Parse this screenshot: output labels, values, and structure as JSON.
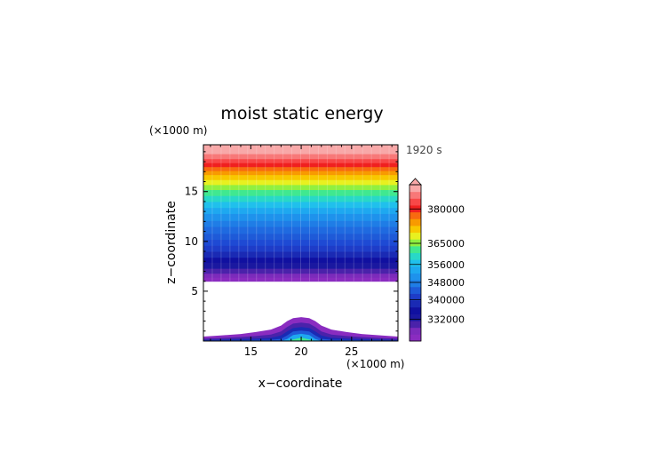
{
  "chart_data": {
    "type": "heatmap",
    "title": "moist static energy",
    "x_unit": "(×1000 m)",
    "z_unit": "(×1000 m)",
    "xlabel": "x−coordinate",
    "ylabel": "z−coordinate",
    "time_label": "1920 s",
    "xlim": [
      10.3,
      29.6
    ],
    "ylim": [
      0,
      19.7
    ],
    "x_ticks": [
      15,
      20,
      25
    ],
    "z_ticks": [
      5,
      10,
      15
    ],
    "bands": [
      {
        "z0": 6.0,
        "z1": 6.4,
        "color": "#8a2cc0"
      },
      {
        "z0": 6.4,
        "z1": 6.8,
        "color": "#7c2bbb"
      },
      {
        "z0": 6.8,
        "z1": 7.3,
        "color": "#4a22aa"
      },
      {
        "z0": 7.3,
        "z1": 7.9,
        "color": "#1a18a0"
      },
      {
        "z0": 7.9,
        "z1": 8.4,
        "color": "#1010a0"
      },
      {
        "z0": 8.4,
        "z1": 9.0,
        "color": "#1a2ab4"
      },
      {
        "z0": 9.0,
        "z1": 9.6,
        "color": "#1e3cc8"
      },
      {
        "z0": 9.6,
        "z1": 10.2,
        "color": "#1e4ad4"
      },
      {
        "z0": 10.2,
        "z1": 10.8,
        "color": "#1e5ad8"
      },
      {
        "z0": 10.8,
        "z1": 11.5,
        "color": "#1f6ae0"
      },
      {
        "z0": 11.5,
        "z1": 12.1,
        "color": "#1f7de6"
      },
      {
        "z0": 12.1,
        "z1": 12.8,
        "color": "#1e92ec"
      },
      {
        "z0": 12.8,
        "z1": 13.4,
        "color": "#1ea8f0"
      },
      {
        "z0": 13.4,
        "z1": 14.0,
        "color": "#20c0ec"
      },
      {
        "z0": 14.0,
        "z1": 14.6,
        "color": "#28d8c8"
      },
      {
        "z0": 14.6,
        "z1": 15.2,
        "color": "#40e890"
      },
      {
        "z0": 15.2,
        "z1": 15.7,
        "color": "#90f040"
      },
      {
        "z0": 15.7,
        "z1": 16.2,
        "color": "#e8f020"
      },
      {
        "z0": 16.2,
        "z1": 16.7,
        "color": "#f8c800"
      },
      {
        "z0": 16.7,
        "z1": 17.1,
        "color": "#f89a00"
      },
      {
        "z0": 17.1,
        "z1": 17.5,
        "color": "#f86a10"
      },
      {
        "z0": 17.5,
        "z1": 17.9,
        "color": "#f02020"
      },
      {
        "z0": 17.9,
        "z1": 18.3,
        "color": "#f84848"
      },
      {
        "z0": 18.3,
        "z1": 18.8,
        "color": "#f87878"
      },
      {
        "z0": 18.8,
        "z1": 19.7,
        "color": "#f8a8a8"
      }
    ],
    "mound": {
      "x": [
        10.3,
        12,
        14,
        15.5,
        17,
        18,
        18.6,
        19.2,
        20,
        20.8,
        21.4,
        22,
        23,
        24.5,
        26,
        28,
        29.6
      ],
      "layers": [
        {
          "color": "#8a2cc0",
          "top": [
            0.45,
            0.55,
            0.7,
            0.9,
            1.15,
            1.55,
            2.0,
            2.3,
            2.4,
            2.3,
            2.0,
            1.55,
            1.15,
            0.9,
            0.7,
            0.55,
            0.45
          ]
        },
        {
          "color": "#4a22aa",
          "top": [
            0.25,
            0.3,
            0.4,
            0.5,
            0.65,
            0.95,
            1.4,
            1.75,
            1.85,
            1.75,
            1.4,
            0.95,
            0.65,
            0.5,
            0.4,
            0.3,
            0.25
          ]
        },
        {
          "color": "#1a2ab4",
          "top": [
            0.12,
            0.15,
            0.2,
            0.25,
            0.32,
            0.55,
            0.95,
            1.3,
            1.4,
            1.3,
            0.95,
            0.55,
            0.32,
            0.25,
            0.2,
            0.15,
            0.12
          ]
        },
        {
          "color": "#1e5ad8",
          "top": [
            0.05,
            0.06,
            0.08,
            0.1,
            0.12,
            0.22,
            0.55,
            0.95,
            1.05,
            0.95,
            0.55,
            0.22,
            0.12,
            0.1,
            0.08,
            0.06,
            0.05
          ]
        },
        {
          "color": "#1ea8f0",
          "top": [
            0,
            0,
            0,
            0,
            0,
            0,
            0.2,
            0.6,
            0.72,
            0.6,
            0.2,
            0,
            0,
            0,
            0,
            0,
            0
          ]
        },
        {
          "color": "#40e890",
          "top": [
            0,
            0,
            0,
            0,
            0,
            0,
            0,
            0.15,
            0.35,
            0.15,
            0,
            0,
            0,
            0,
            0,
            0,
            0
          ]
        }
      ]
    },
    "colorbar": {
      "labels": [
        "380000",
        "365000",
        "356000",
        "348000",
        "340000",
        "332000"
      ],
      "label_positions": [
        0.845,
        0.625,
        0.49,
        0.375,
        0.265,
        0.14
      ],
      "colors": [
        "#8a2cc0",
        "#7c2bbb",
        "#4a22aa",
        "#1a18a0",
        "#1010a0",
        "#1a2ab4",
        "#1e3cc8",
        "#1e5ad8",
        "#1f7de6",
        "#1e92ec",
        "#1ea8f0",
        "#20c0ec",
        "#28d8c8",
        "#40e890",
        "#90f040",
        "#e8f020",
        "#f8c800",
        "#f89a00",
        "#f86a10",
        "#f02020",
        "#f84848",
        "#f87878",
        "#f8a8a8"
      ],
      "extend": "top"
    }
  }
}
